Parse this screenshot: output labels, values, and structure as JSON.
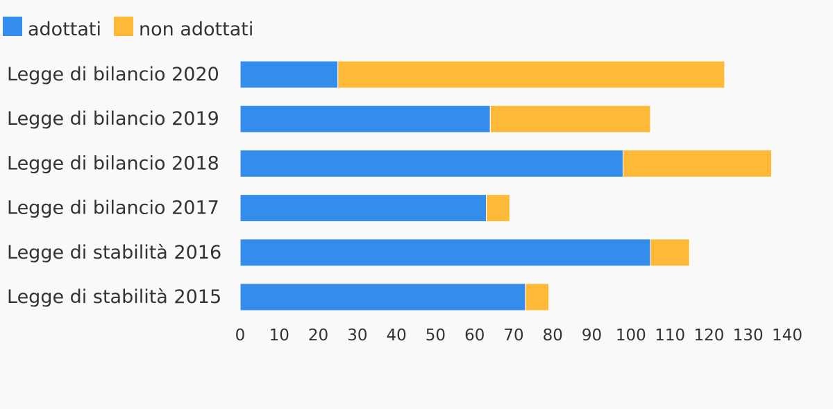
{
  "chart_data": {
    "type": "bar",
    "orientation": "horizontal",
    "stacked": true,
    "categories": [
      "Legge di bilancio 2020",
      "Legge di bilancio 2019",
      "Legge di bilancio 2018",
      "Legge di bilancio 2017",
      "Legge di stabilità 2016",
      "Legge di stabilità 2015"
    ],
    "series": [
      {
        "name": "adottati",
        "color": "#348ded",
        "values": [
          25,
          64,
          98,
          63,
          105,
          73
        ]
      },
      {
        "name": "non adottati",
        "color": "#ffb938",
        "values": [
          99,
          41,
          38,
          6,
          10,
          6
        ]
      }
    ],
    "xlim": [
      0,
      140
    ],
    "xticks": [
      "0",
      "10",
      "20",
      "30",
      "40",
      "50",
      "60",
      "70",
      "80",
      "90",
      "100",
      "110",
      "120",
      "130",
      "140"
    ],
    "grid": false,
    "legend": "top-left"
  }
}
